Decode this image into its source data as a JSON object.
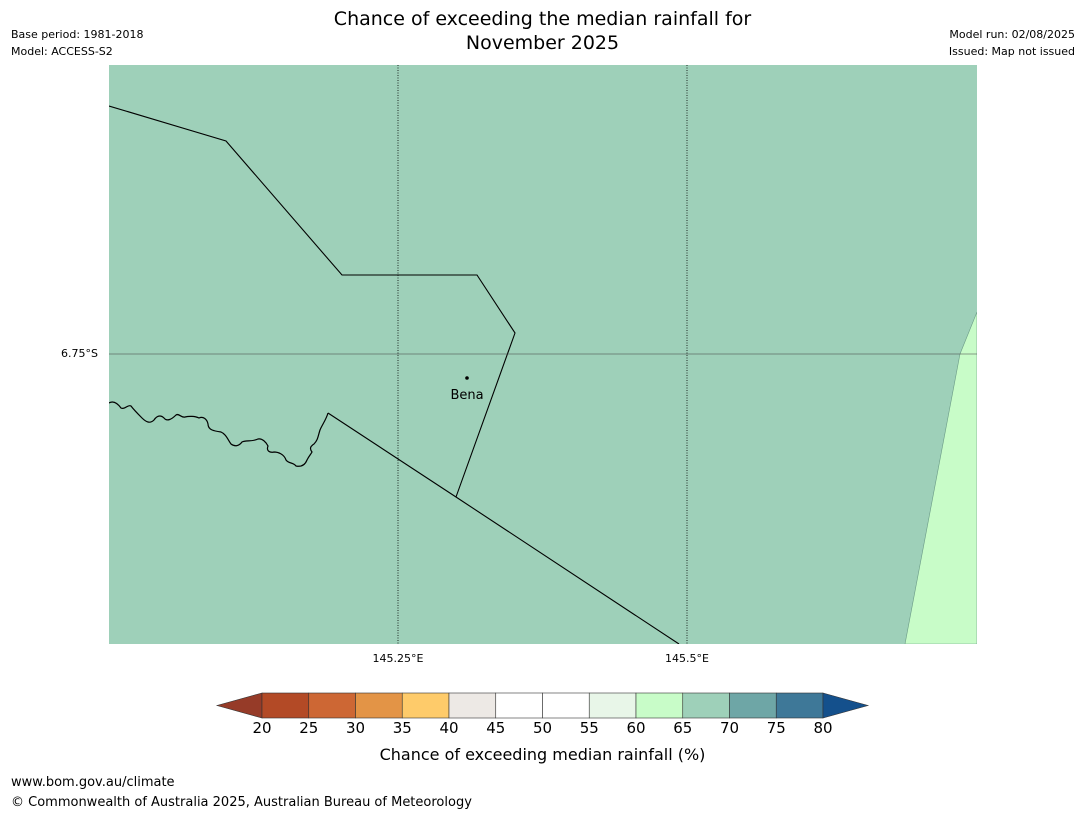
{
  "title": {
    "line1": "Chance of exceeding the median rainfall for",
    "line2": "November 2025"
  },
  "meta": {
    "base_period": "Base period: 1981-2018",
    "model": "Model: ACCESS-S2",
    "model_run": "Model run: 02/08/2025",
    "issued": "Issued: Map not issued"
  },
  "map": {
    "background_color": "#9ed0b9",
    "secondary_color": "#c8fcc8",
    "latitude_labels": [
      "6.75°S"
    ],
    "longitude_labels": [
      "145.25°E",
      "145.5°E"
    ],
    "place": {
      "name": "Bena"
    }
  },
  "colorbar": {
    "title": "Chance of exceeding median rainfall (%)",
    "ticks": [
      "20",
      "25",
      "30",
      "35",
      "40",
      "45",
      "50",
      "55",
      "60",
      "65",
      "70",
      "75",
      "80"
    ],
    "under_color": "#963b28",
    "over_color": "#14508c",
    "colors": [
      "#b34a26",
      "#cd6734",
      "#e39446",
      "#fecb6a",
      "#ede9e5",
      "#ffffff",
      "#ffffff",
      "#e8f6e8",
      "#c8fcc8",
      "#9ed0b9",
      "#6ea6a6",
      "#3e7898"
    ]
  },
  "footer": {
    "url": "www.bom.gov.au/climate",
    "copyright": "© Commonwealth of Australia 2025, Australian Bureau of Meteorology"
  }
}
